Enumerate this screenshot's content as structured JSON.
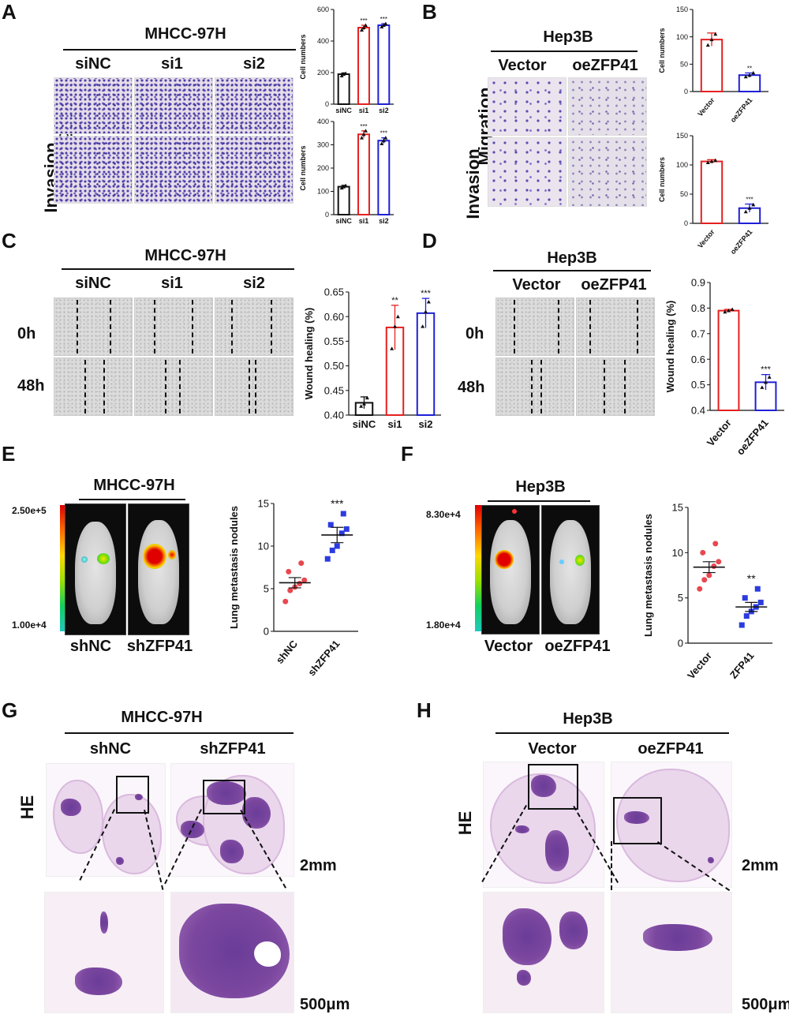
{
  "figure": {
    "panel_labels": {
      "a": "A",
      "b": "B",
      "c": "C",
      "d": "D",
      "e": "E",
      "f": "F",
      "g": "G",
      "h": "H"
    },
    "row_labels": {
      "invasion": "Invasion",
      "migration": "Migration",
      "he": "HE",
      "t0": "0h",
      "t48": "48h"
    },
    "cell_lines": {
      "mhcc": "MHCC-97H",
      "hep3b": "Hep3B"
    },
    "groups": {
      "sinc": "siNC",
      "si1": "si1",
      "si2": "si2",
      "vector": "Vector",
      "oezfp41": "oeZFP41",
      "shnc": "shNC",
      "shzfp41": "shZFP41",
      "zfp41": "ZFP41"
    },
    "scale_bars": {
      "low": "2mm",
      "high": "500μm"
    },
    "colorbar": {
      "e_max": "2.50e+5",
      "e_min": "1.00e+4",
      "f_max": "8.30e+4",
      "f_min": "1.80e+4"
    }
  },
  "colors": {
    "black": "#111111",
    "red": "#e62020",
    "blue": "#1f1fd8",
    "red_dot": "#e8474f",
    "blue_sq": "#2b3be0"
  },
  "chart_data": [
    {
      "id": "A_top",
      "type": "bar",
      "categories": [
        "siNC",
        "si1",
        "si2"
      ],
      "values": [
        190,
        485,
        500
      ],
      "errors": [
        8,
        15,
        10
      ],
      "points": [
        [
          180,
          190,
          195
        ],
        [
          470,
          485,
          500
        ],
        [
          490,
          500,
          510
        ]
      ],
      "colors": [
        "#111111",
        "#e62020",
        "#1f1fd8"
      ],
      "ylabel": "Cell numbers",
      "ylim": [
        0,
        600
      ],
      "yticks": [
        0,
        200,
        400,
        600
      ],
      "sig": [
        "",
        "***",
        "***"
      ]
    },
    {
      "id": "A_bottom",
      "type": "bar",
      "categories": [
        "siNC",
        "si1",
        "si2"
      ],
      "values": [
        120,
        345,
        318
      ],
      "errors": [
        6,
        15,
        12
      ],
      "points": [
        [
          115,
          120,
          125
        ],
        [
          330,
          345,
          360
        ],
        [
          305,
          318,
          330
        ]
      ],
      "colors": [
        "#111111",
        "#e62020",
        "#1f1fd8"
      ],
      "ylabel": "Cell numbers",
      "ylim": [
        0,
        400
      ],
      "yticks": [
        0,
        100,
        200,
        300,
        400
      ],
      "sig": [
        "",
        "***",
        "***"
      ]
    },
    {
      "id": "B_top",
      "type": "bar",
      "categories": [
        "Vector",
        "oeZFP41"
      ],
      "values": [
        95,
        30
      ],
      "errors": [
        12,
        4
      ],
      "points": [
        [
          85,
          95,
          105
        ],
        [
          27,
          30,
          34
        ]
      ],
      "colors": [
        "#e62020",
        "#1f1fd8"
      ],
      "ylabel": "Cell numbers",
      "ylim": [
        0,
        150
      ],
      "yticks": [
        0,
        50,
        100,
        150
      ],
      "sig": [
        "",
        "**"
      ]
    },
    {
      "id": "B_bottom",
      "type": "bar",
      "categories": [
        "Vector",
        "oeZFP41"
      ],
      "values": [
        106,
        26
      ],
      "errors": [
        3,
        7
      ],
      "points": [
        [
          104,
          106,
          108
        ],
        [
          20,
          26,
          32
        ]
      ],
      "colors": [
        "#e62020",
        "#1f1fd8"
      ],
      "ylabel": "Cell numbers",
      "ylim": [
        0,
        150
      ],
      "yticks": [
        0,
        50,
        100,
        150
      ],
      "sig": [
        "",
        "***"
      ]
    },
    {
      "id": "C",
      "type": "bar",
      "categories": [
        "siNC",
        "si1",
        "si2"
      ],
      "values": [
        0.425,
        0.578,
        0.607
      ],
      "errors": [
        0.012,
        0.045,
        0.03
      ],
      "points": [
        [
          0.418,
          0.423,
          0.435
        ],
        [
          0.535,
          0.58,
          0.6
        ],
        [
          0.58,
          0.61,
          0.63
        ]
      ],
      "colors": [
        "#111111",
        "#e62020",
        "#1f1fd8"
      ],
      "ylabel": "Wound healing (%)",
      "ylim": [
        0.4,
        0.65
      ],
      "yticks": [
        0.4,
        0.45,
        0.5,
        0.55,
        0.6,
        0.65
      ],
      "sig": [
        "",
        "**",
        "***"
      ]
    },
    {
      "id": "D",
      "type": "bar",
      "categories": [
        "Vector",
        "oeZFP41"
      ],
      "values": [
        0.79,
        0.51
      ],
      "errors": [
        0.005,
        0.03
      ],
      "points": [
        [
          0.785,
          0.79,
          0.795
        ],
        [
          0.49,
          0.51,
          0.53
        ]
      ],
      "colors": [
        "#e62020",
        "#1f1fd8"
      ],
      "ylabel": "Wound healing (%)",
      "ylim": [
        0.4,
        0.9
      ],
      "yticks": [
        0.4,
        0.5,
        0.6,
        0.7,
        0.8,
        0.9
      ],
      "sig": [
        "",
        "***"
      ]
    },
    {
      "id": "E",
      "type": "scatter",
      "categories": [
        "shNC",
        "shZFP41"
      ],
      "means": [
        5.7,
        11.3
      ],
      "sem": [
        0.6,
        0.9
      ],
      "points": [
        [
          3.5,
          4.8,
          5.2,
          5.6,
          6.0,
          7.0,
          8.0
        ],
        [
          8.5,
          9.5,
          10.0,
          11.5,
          12.0,
          12.5,
          13.8
        ]
      ],
      "colors": [
        "#e8474f",
        "#2b3be0"
      ],
      "markers": [
        "circle",
        "square"
      ],
      "ylabel": "Lung metastasis nodules",
      "ylim": [
        0,
        15
      ],
      "yticks": [
        0,
        5,
        10,
        15
      ],
      "sig": [
        "",
        "***"
      ]
    },
    {
      "id": "F",
      "type": "scatter",
      "categories": [
        "Vector",
        "ZFP41"
      ],
      "means": [
        8.4,
        4.0
      ],
      "sem": [
        0.6,
        0.5
      ],
      "points": [
        [
          6.0,
          7.0,
          7.5,
          8.5,
          9.0,
          10.0,
          11.0
        ],
        [
          2.0,
          3.0,
          3.5,
          4.0,
          4.5,
          5.0,
          6.0
        ]
      ],
      "colors": [
        "#e8474f",
        "#2b3be0"
      ],
      "markers": [
        "circle",
        "square"
      ],
      "ylabel": "Lung metastasis nodules",
      "ylim": [
        0,
        15
      ],
      "yticks": [
        0,
        5,
        10,
        15
      ],
      "sig": [
        "",
        "**"
      ]
    }
  ]
}
